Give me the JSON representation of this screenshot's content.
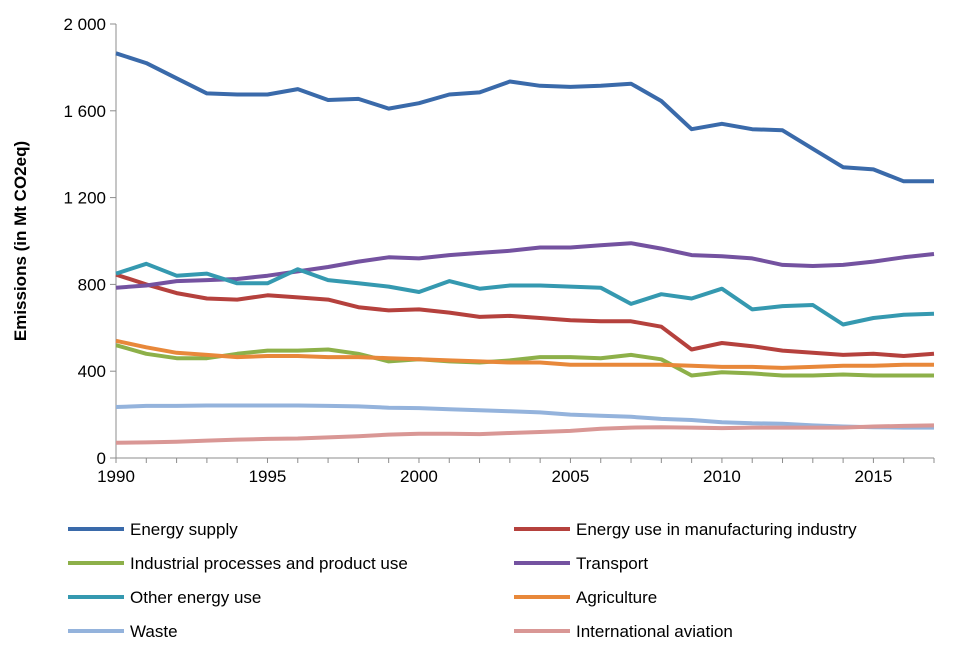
{
  "chart_data": {
    "type": "line",
    "title": "",
    "xlabel": "",
    "ylabel": "Emissions (in Mt CO2eq)",
    "xlim": [
      1990,
      2017
    ],
    "ylim": [
      0,
      2000
    ],
    "x_ticks": [
      1990,
      1995,
      2000,
      2005,
      2010,
      2015
    ],
    "x_tick_labels": [
      "1990",
      "1995",
      "2000",
      "2005",
      "2010",
      "2015"
    ],
    "y_ticks": [
      0,
      400,
      800,
      1200,
      1600,
      2000
    ],
    "y_tick_labels": [
      "0",
      "400",
      "800",
      "1 200",
      "1 600",
      "2 000"
    ],
    "grid": false,
    "legend_position": "bottom",
    "x": [
      1990,
      1991,
      1992,
      1993,
      1994,
      1995,
      1996,
      1997,
      1998,
      1999,
      2000,
      2001,
      2002,
      2003,
      2004,
      2005,
      2006,
      2007,
      2008,
      2009,
      2010,
      2011,
      2012,
      2013,
      2014,
      2015,
      2016,
      2017
    ],
    "series": [
      {
        "name": "Energy supply",
        "color": "#3a6aaa",
        "values": [
          1865,
          1820,
          1750,
          1680,
          1675,
          1675,
          1700,
          1650,
          1655,
          1610,
          1635,
          1675,
          1685,
          1735,
          1715,
          1710,
          1715,
          1725,
          1645,
          1515,
          1540,
          1515,
          1510,
          1425,
          1340,
          1330,
          1275,
          1275
        ]
      },
      {
        "name": "Energy use in manufacturing industry",
        "color": "#b5413d",
        "values": [
          845,
          800,
          760,
          735,
          730,
          750,
          740,
          730,
          695,
          680,
          685,
          670,
          650,
          655,
          645,
          635,
          630,
          630,
          605,
          500,
          530,
          515,
          495,
          485,
          475,
          480,
          470,
          480
        ]
      },
      {
        "name": "Industrial processes and product use",
        "color": "#8db049",
        "values": [
          520,
          480,
          460,
          460,
          480,
          495,
          495,
          500,
          480,
          445,
          455,
          445,
          440,
          450,
          465,
          465,
          460,
          475,
          455,
          380,
          395,
          390,
          380,
          380,
          385,
          380,
          380,
          380
        ]
      },
      {
        "name": "Transport",
        "color": "#7452a0",
        "values": [
          785,
          795,
          815,
          820,
          825,
          840,
          860,
          880,
          905,
          925,
          920,
          935,
          945,
          955,
          970,
          970,
          980,
          990,
          965,
          935,
          930,
          920,
          890,
          885,
          890,
          905,
          925,
          940
        ]
      },
      {
        "name": "Other energy use",
        "color": "#3599b0",
        "values": [
          850,
          895,
          840,
          850,
          805,
          805,
          870,
          820,
          805,
          790,
          765,
          815,
          780,
          795,
          795,
          790,
          785,
          710,
          755,
          735,
          780,
          685,
          700,
          705,
          615,
          645,
          660,
          665
        ]
      },
      {
        "name": "Agriculture",
        "color": "#e8883a",
        "values": [
          540,
          510,
          485,
          475,
          465,
          470,
          470,
          465,
          465,
          460,
          455,
          450,
          445,
          440,
          440,
          430,
          430,
          430,
          430,
          425,
          420,
          420,
          415,
          420,
          425,
          425,
          430,
          430
        ]
      },
      {
        "name": "Waste",
        "color": "#94b3dc",
        "values": [
          235,
          240,
          240,
          242,
          242,
          242,
          242,
          240,
          238,
          232,
          230,
          225,
          220,
          215,
          210,
          200,
          195,
          190,
          180,
          175,
          165,
          160,
          158,
          150,
          145,
          142,
          140,
          140
        ]
      },
      {
        "name": "International aviation",
        "color": "#d99795",
        "values": [
          70,
          72,
          75,
          80,
          85,
          88,
          90,
          95,
          100,
          108,
          112,
          112,
          110,
          115,
          120,
          125,
          135,
          140,
          142,
          140,
          138,
          140,
          140,
          140,
          140,
          145,
          148,
          150
        ]
      }
    ]
  }
}
